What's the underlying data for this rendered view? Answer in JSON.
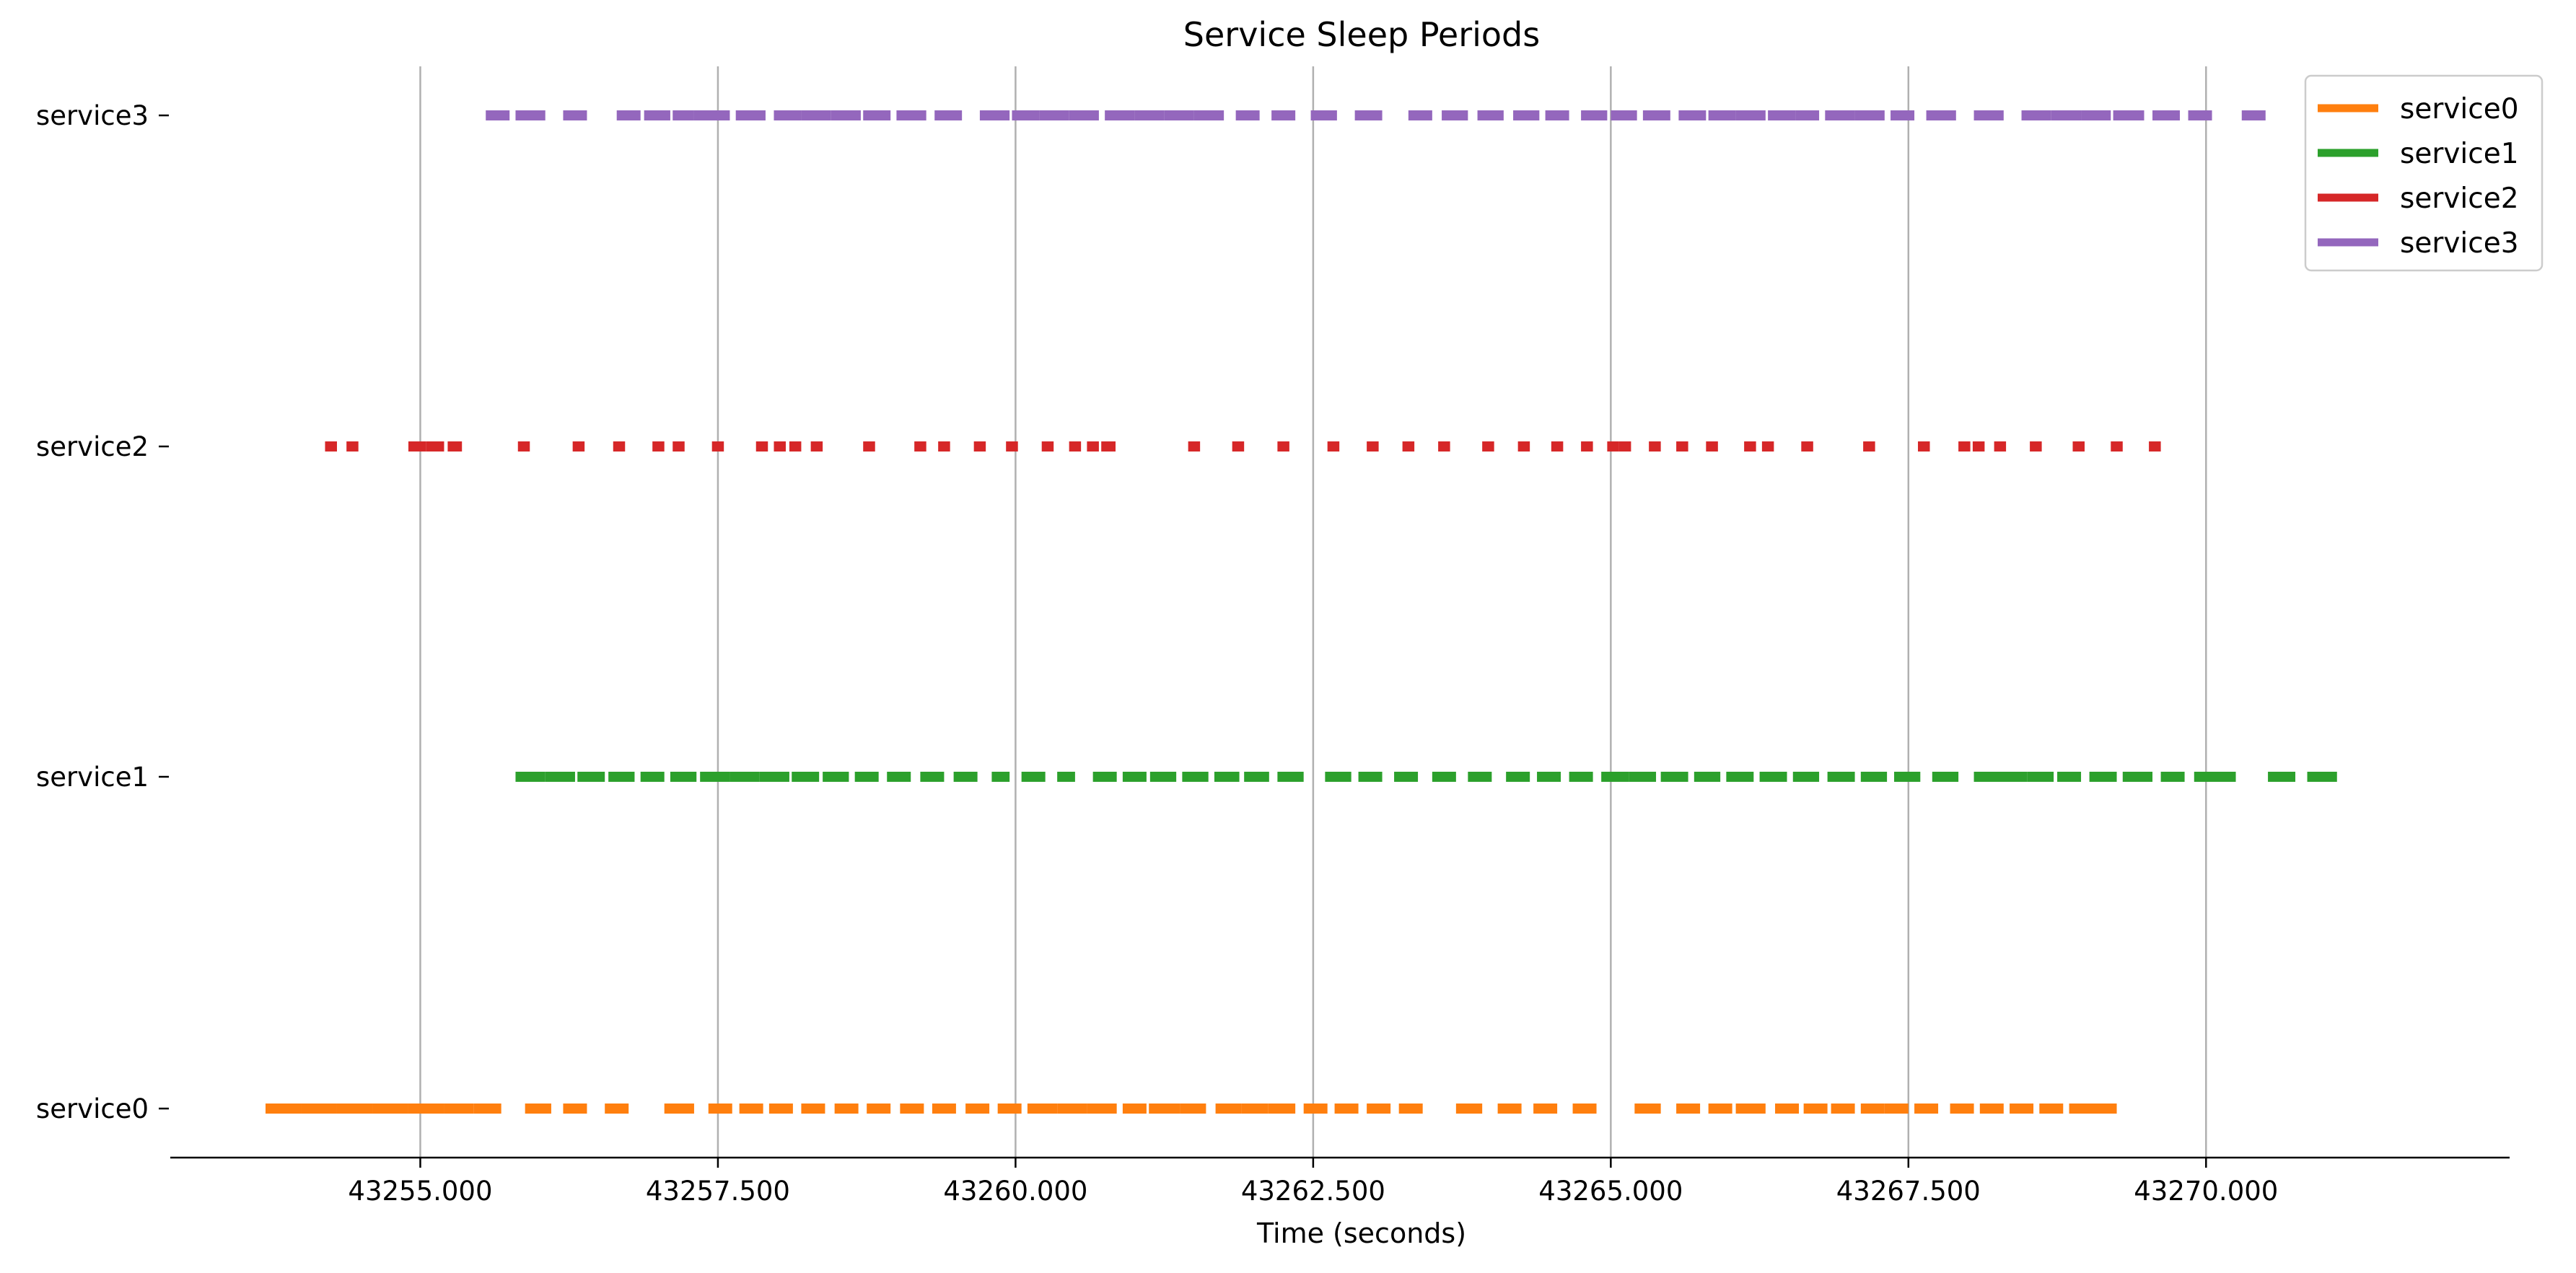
{
  "chart_data": {
    "type": "timeline",
    "title": "Service Sleep Periods",
    "xlabel": "Time (seconds)",
    "ylabel": "",
    "xlim": [
      43252.9,
      43272.55
    ],
    "x_ticks": [
      43255.0,
      43257.5,
      43260.0,
      43262.5,
      43265.0,
      43267.5,
      43270.0
    ],
    "x_tick_labels": [
      "43255.000",
      "43257.500",
      "43260.000",
      "43262.500",
      "43265.000",
      "43267.500",
      "43270.000"
    ],
    "categories": [
      "service0",
      "service1",
      "service2",
      "service3"
    ],
    "grid": "vertical",
    "legend_position": "top-right",
    "series": [
      {
        "name": "service0",
        "color": "#ff7f0e",
        "segments": [
          [
            43253.7,
            43254.0
          ],
          [
            43254.0,
            43254.3
          ],
          [
            43254.3,
            43254.6
          ],
          [
            43254.6,
            43254.9
          ],
          [
            43254.9,
            43255.2
          ],
          [
            43255.2,
            43255.45
          ],
          [
            43255.45,
            43255.68
          ],
          [
            43255.88,
            43256.1
          ],
          [
            43256.2,
            43256.4
          ],
          [
            43256.55,
            43256.75
          ],
          [
            43257.05,
            43257.3
          ],
          [
            43257.42,
            43257.62
          ],
          [
            43257.68,
            43257.88
          ],
          [
            43257.93,
            43258.13
          ],
          [
            43258.2,
            43258.4
          ],
          [
            43258.48,
            43258.68
          ],
          [
            43258.75,
            43258.95
          ],
          [
            43259.03,
            43259.23
          ],
          [
            43259.3,
            43259.5
          ],
          [
            43259.58,
            43259.78
          ],
          [
            43259.85,
            43260.05
          ],
          [
            43260.1,
            43260.35
          ],
          [
            43260.35,
            43260.6
          ],
          [
            43260.6,
            43260.85
          ],
          [
            43260.9,
            43261.1
          ],
          [
            43261.12,
            43261.38
          ],
          [
            43261.38,
            43261.6
          ],
          [
            43261.68,
            43261.9
          ],
          [
            43261.9,
            43262.12
          ],
          [
            43262.12,
            43262.35
          ],
          [
            43262.42,
            43262.62
          ],
          [
            43262.68,
            43262.88
          ],
          [
            43262.95,
            43263.15
          ],
          [
            43263.22,
            43263.42
          ],
          [
            43263.7,
            43263.92
          ],
          [
            43264.05,
            43264.25
          ],
          [
            43264.35,
            43264.55
          ],
          [
            43264.68,
            43264.88
          ],
          [
            43265.2,
            43265.42
          ],
          [
            43265.55,
            43265.75
          ],
          [
            43265.82,
            43266.02
          ],
          [
            43266.05,
            43266.3
          ],
          [
            43266.38,
            43266.58
          ],
          [
            43266.62,
            43266.82
          ],
          [
            43266.85,
            43267.05
          ],
          [
            43267.1,
            43267.3
          ],
          [
            43267.3,
            43267.5
          ],
          [
            43267.55,
            43267.75
          ],
          [
            43267.85,
            43268.05
          ],
          [
            43268.1,
            43268.3
          ],
          [
            43268.35,
            43268.55
          ],
          [
            43268.6,
            43268.8
          ],
          [
            43268.85,
            43269.25
          ]
        ]
      },
      {
        "name": "service1",
        "color": "#2ca02c",
        "segments": [
          [
            43255.8,
            43256.05
          ],
          [
            43256.05,
            43256.3
          ],
          [
            43256.32,
            43256.55
          ],
          [
            43256.58,
            43256.8
          ],
          [
            43256.85,
            43257.05
          ],
          [
            43257.1,
            43257.32
          ],
          [
            43257.35,
            43257.6
          ],
          [
            43257.6,
            43257.85
          ],
          [
            43257.85,
            43258.1
          ],
          [
            43258.12,
            43258.35
          ],
          [
            43258.38,
            43258.6
          ],
          [
            43258.65,
            43258.85
          ],
          [
            43258.92,
            43259.12
          ],
          [
            43259.2,
            43259.4
          ],
          [
            43259.48,
            43259.68
          ],
          [
            43259.8,
            43259.95
          ],
          [
            43260.05,
            43260.25
          ],
          [
            43260.35,
            43260.5
          ],
          [
            43260.65,
            43260.85
          ],
          [
            43260.9,
            43261.1
          ],
          [
            43261.13,
            43261.35
          ],
          [
            43261.4,
            43261.62
          ],
          [
            43261.67,
            43261.88
          ],
          [
            43261.92,
            43262.13
          ],
          [
            43262.2,
            43262.42
          ],
          [
            43262.6,
            43262.82
          ],
          [
            43262.88,
            43263.08
          ],
          [
            43263.18,
            43263.38
          ],
          [
            43263.5,
            43263.7
          ],
          [
            43263.8,
            43264.0
          ],
          [
            43264.12,
            43264.32
          ],
          [
            43264.38,
            43264.58
          ],
          [
            43264.65,
            43264.85
          ],
          [
            43264.92,
            43265.15
          ],
          [
            43265.15,
            43265.38
          ],
          [
            43265.42,
            43265.65
          ],
          [
            43265.7,
            43265.92
          ],
          [
            43265.97,
            43266.2
          ],
          [
            43266.25,
            43266.48
          ],
          [
            43266.53,
            43266.75
          ],
          [
            43266.82,
            43267.05
          ],
          [
            43267.1,
            43267.32
          ],
          [
            43267.38,
            43267.6
          ],
          [
            43267.7,
            43267.92
          ],
          [
            43268.05,
            43268.28
          ],
          [
            43268.28,
            43268.5
          ],
          [
            43268.5,
            43268.72
          ],
          [
            43268.75,
            43268.95
          ],
          [
            43269.02,
            43269.25
          ],
          [
            43269.3,
            43269.55
          ],
          [
            43269.62,
            43269.82
          ],
          [
            43269.9,
            43270.25
          ],
          [
            43270.52,
            43270.75
          ],
          [
            43270.85,
            43271.1
          ]
        ]
      },
      {
        "name": "service2",
        "color": "#d62728",
        "segments": [
          [
            43254.2,
            43254.3
          ],
          [
            43254.38,
            43254.48
          ],
          [
            43254.9,
            43255.05
          ],
          [
            43255.05,
            43255.2
          ],
          [
            43255.23,
            43255.35
          ],
          [
            43255.82,
            43255.92
          ],
          [
            43256.28,
            43256.38
          ],
          [
            43256.62,
            43256.72
          ],
          [
            43256.95,
            43257.05
          ],
          [
            43257.12,
            43257.22
          ],
          [
            43257.45,
            43257.55
          ],
          [
            43257.82,
            43257.92
          ],
          [
            43257.97,
            43258.07
          ],
          [
            43258.1,
            43258.2
          ],
          [
            43258.28,
            43258.38
          ],
          [
            43258.72,
            43258.82
          ],
          [
            43259.15,
            43259.25
          ],
          [
            43259.35,
            43259.45
          ],
          [
            43259.65,
            43259.75
          ],
          [
            43259.92,
            43260.02
          ],
          [
            43260.22,
            43260.32
          ],
          [
            43260.45,
            43260.55
          ],
          [
            43260.6,
            43260.7
          ],
          [
            43260.72,
            43260.84
          ],
          [
            43261.45,
            43261.55
          ],
          [
            43261.82,
            43261.92
          ],
          [
            43262.2,
            43262.3
          ],
          [
            43262.62,
            43262.72
          ],
          [
            43262.95,
            43263.05
          ],
          [
            43263.25,
            43263.35
          ],
          [
            43263.55,
            43263.65
          ],
          [
            43263.92,
            43264.02
          ],
          [
            43264.22,
            43264.32
          ],
          [
            43264.5,
            43264.6
          ],
          [
            43264.75,
            43264.85
          ],
          [
            43264.97,
            43265.07
          ],
          [
            43265.07,
            43265.17
          ],
          [
            43265.32,
            43265.42
          ],
          [
            43265.55,
            43265.65
          ],
          [
            43265.8,
            43265.9
          ],
          [
            43266.12,
            43266.22
          ],
          [
            43266.27,
            43266.37
          ],
          [
            43266.6,
            43266.7
          ],
          [
            43267.12,
            43267.22
          ],
          [
            43267.58,
            43267.68
          ],
          [
            43267.92,
            43268.02
          ],
          [
            43268.04,
            43268.14
          ],
          [
            43268.22,
            43268.32
          ],
          [
            43268.52,
            43268.62
          ],
          [
            43268.88,
            43268.98
          ],
          [
            43269.2,
            43269.3
          ],
          [
            43269.52,
            43269.62
          ]
        ]
      },
      {
        "name": "service3",
        "color": "#9467bd",
        "segments": [
          [
            43255.55,
            43255.75
          ],
          [
            43255.8,
            43256.05
          ],
          [
            43256.2,
            43256.4
          ],
          [
            43256.65,
            43256.85
          ],
          [
            43256.88,
            43257.1
          ],
          [
            43257.12,
            43257.3
          ],
          [
            43257.3,
            43257.6
          ],
          [
            43257.65,
            43257.9
          ],
          [
            43257.97,
            43258.2
          ],
          [
            43258.2,
            43258.45
          ],
          [
            43258.45,
            43258.7
          ],
          [
            43258.72,
            43258.95
          ],
          [
            43259.0,
            43259.25
          ],
          [
            43259.32,
            43259.55
          ],
          [
            43259.7,
            43259.95
          ],
          [
            43259.97,
            43260.2
          ],
          [
            43260.2,
            43260.45
          ],
          [
            43260.45,
            43260.7
          ],
          [
            43260.75,
            43261.0
          ],
          [
            43261.0,
            43261.25
          ],
          [
            43261.25,
            43261.5
          ],
          [
            43261.5,
            43261.75
          ],
          [
            43261.85,
            43262.05
          ],
          [
            43262.15,
            43262.35
          ],
          [
            43262.48,
            43262.7
          ],
          [
            43262.85,
            43263.08
          ],
          [
            43263.3,
            43263.5
          ],
          [
            43263.58,
            43263.8
          ],
          [
            43263.88,
            43264.1
          ],
          [
            43264.18,
            43264.4
          ],
          [
            43264.45,
            43264.65
          ],
          [
            43264.75,
            43264.97
          ],
          [
            43265.0,
            43265.22
          ],
          [
            43265.27,
            43265.5
          ],
          [
            43265.57,
            43265.8
          ],
          [
            43265.82,
            43266.05
          ],
          [
            43266.05,
            43266.3
          ],
          [
            43266.32,
            43266.55
          ],
          [
            43266.55,
            43266.75
          ],
          [
            43266.8,
            43267.05
          ],
          [
            43267.05,
            43267.3
          ],
          [
            43267.35,
            43267.55
          ],
          [
            43267.65,
            43267.9
          ],
          [
            43268.05,
            43268.3
          ],
          [
            43268.45,
            43268.7
          ],
          [
            43268.7,
            43268.95
          ],
          [
            43268.95,
            43269.2
          ],
          [
            43269.22,
            43269.48
          ],
          [
            43269.55,
            43269.78
          ],
          [
            43269.85,
            43270.05
          ],
          [
            43270.3,
            43270.5
          ]
        ]
      }
    ]
  }
}
